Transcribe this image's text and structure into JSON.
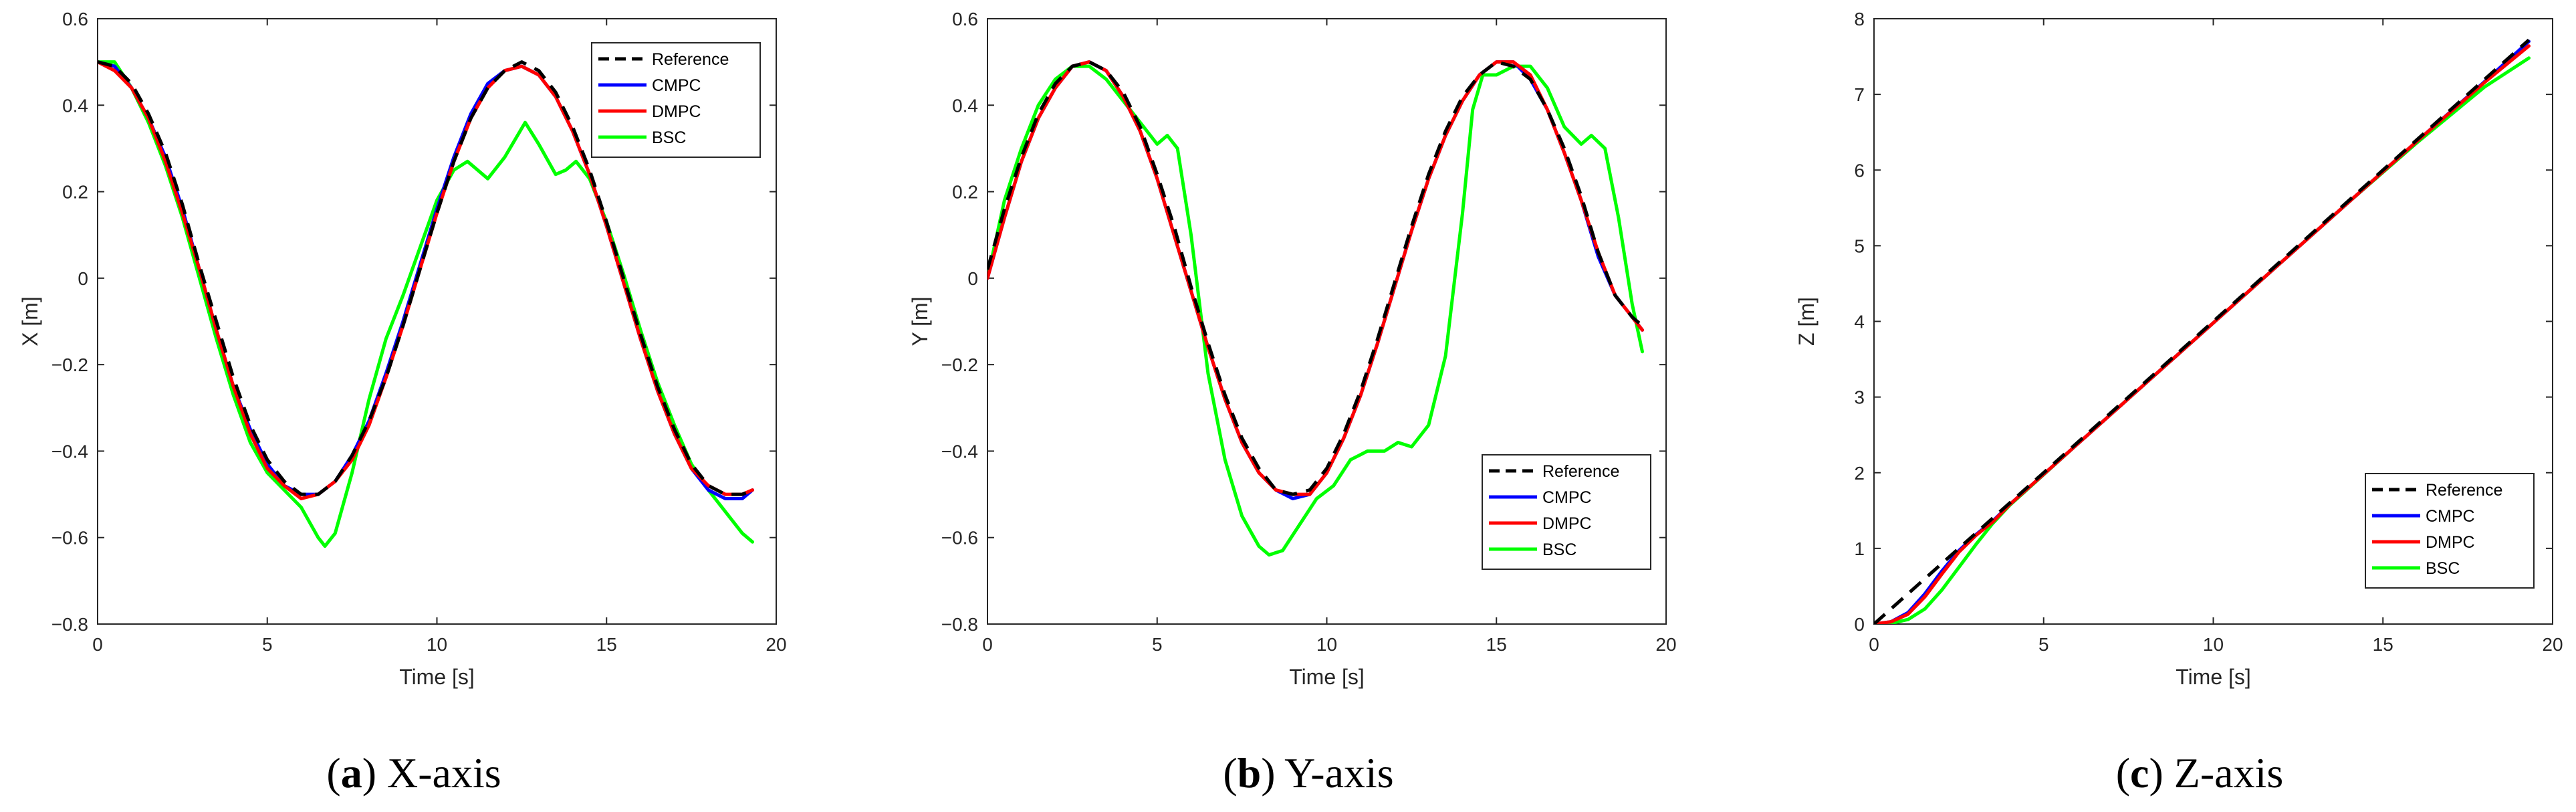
{
  "colors": {
    "Reference": "#000000",
    "CMPC": "#0000ff",
    "DMPC": "#ff0000",
    "BSC": "#00ff00"
  },
  "chart_data": [
    {
      "type": "line",
      "caption_label": "a",
      "caption_text": " X-axis",
      "xlabel": "Time [s]",
      "ylabel": "X [m]",
      "xlim": [
        0,
        20
      ],
      "ylim": [
        -0.8,
        0.6
      ],
      "xticks": [
        0,
        5,
        10,
        15,
        20
      ],
      "yticks": [
        -0.8,
        -0.6,
        -0.4,
        -0.2,
        0,
        0.2,
        0.4,
        0.6
      ],
      "legend_position": "top-right",
      "series": [
        {
          "name": "Reference",
          "style": "dashed",
          "x": [
            0,
            0.5,
            1,
            1.5,
            2,
            2.5,
            3,
            3.5,
            4,
            4.5,
            5,
            5.5,
            6,
            6.5,
            7,
            7.5,
            8,
            8.5,
            9,
            9.5,
            10,
            10.5,
            11,
            11.5,
            12,
            12.5,
            13,
            13.5,
            14,
            14.5,
            15,
            15.5,
            16,
            16.5,
            17,
            17.5,
            18,
            18.5,
            19,
            19.3
          ],
          "y": [
            0.5,
            0.49,
            0.45,
            0.38,
            0.29,
            0.17,
            0.03,
            -0.1,
            -0.23,
            -0.34,
            -0.42,
            -0.47,
            -0.5,
            -0.5,
            -0.47,
            -0.41,
            -0.33,
            -0.23,
            -0.11,
            0.02,
            0.15,
            0.27,
            0.37,
            0.44,
            0.48,
            0.5,
            0.48,
            0.43,
            0.35,
            0.25,
            0.13,
            0.0,
            -0.13,
            -0.25,
            -0.35,
            -0.43,
            -0.48,
            -0.5,
            -0.5,
            -0.49
          ]
        },
        {
          "name": "CMPC",
          "style": "solid",
          "x": [
            0,
            0.5,
            1,
            1.5,
            2,
            2.5,
            3,
            3.5,
            4,
            4.5,
            5,
            5.5,
            6,
            6.5,
            7,
            7.5,
            8,
            8.5,
            9,
            9.5,
            10,
            10.5,
            11,
            11.5,
            12,
            12.5,
            13,
            13.5,
            14,
            14.5,
            15,
            15.5,
            16,
            16.5,
            17,
            17.5,
            18,
            18.5,
            19,
            19.3
          ],
          "y": [
            0.5,
            0.49,
            0.44,
            0.37,
            0.28,
            0.16,
            0.02,
            -0.12,
            -0.25,
            -0.35,
            -0.43,
            -0.48,
            -0.5,
            -0.5,
            -0.47,
            -0.41,
            -0.33,
            -0.22,
            -0.1,
            0.03,
            0.16,
            0.28,
            0.38,
            0.45,
            0.48,
            0.49,
            0.47,
            0.42,
            0.34,
            0.24,
            0.12,
            -0.01,
            -0.14,
            -0.26,
            -0.36,
            -0.44,
            -0.49,
            -0.51,
            -0.51,
            -0.49
          ]
        },
        {
          "name": "DMPC",
          "style": "solid",
          "x": [
            0,
            0.5,
            1,
            1.5,
            2,
            2.5,
            3,
            3.5,
            4,
            4.5,
            5,
            5.5,
            6,
            6.5,
            7,
            7.5,
            8,
            8.5,
            9,
            9.5,
            10,
            10.5,
            11,
            11.5,
            12,
            12.5,
            13,
            13.5,
            14,
            14.5,
            15,
            15.5,
            16,
            16.5,
            17,
            17.5,
            18,
            18.5,
            19,
            19.3
          ],
          "y": [
            0.5,
            0.48,
            0.44,
            0.37,
            0.27,
            0.15,
            0.02,
            -0.12,
            -0.25,
            -0.36,
            -0.44,
            -0.48,
            -0.51,
            -0.5,
            -0.47,
            -0.42,
            -0.34,
            -0.23,
            -0.11,
            0.02,
            0.15,
            0.27,
            0.37,
            0.44,
            0.48,
            0.49,
            0.47,
            0.42,
            0.34,
            0.24,
            0.12,
            -0.01,
            -0.14,
            -0.26,
            -0.36,
            -0.44,
            -0.48,
            -0.5,
            -0.5,
            -0.49
          ]
        },
        {
          "name": "BSC",
          "style": "solid",
          "x": [
            0,
            0.5,
            1,
            1.5,
            2,
            2.5,
            3,
            3.5,
            4,
            4.5,
            5,
            5.5,
            6,
            6.5,
            6.7,
            7,
            7.5,
            8,
            8.5,
            9,
            9.5,
            10,
            10.5,
            10.9,
            11.2,
            11.5,
            12,
            12.6,
            13,
            13.5,
            13.8,
            14.1,
            14.5,
            15,
            15.5,
            16,
            16.5,
            17,
            17.5,
            18,
            18.5,
            19,
            19.3
          ],
          "y": [
            0.5,
            0.5,
            0.44,
            0.36,
            0.26,
            0.14,
            0.0,
            -0.14,
            -0.27,
            -0.38,
            -0.45,
            -0.49,
            -0.53,
            -0.6,
            -0.62,
            -0.59,
            -0.45,
            -0.28,
            -0.14,
            -0.04,
            0.07,
            0.18,
            0.25,
            0.27,
            0.25,
            0.23,
            0.28,
            0.36,
            0.31,
            0.24,
            0.25,
            0.27,
            0.23,
            0.13,
            0.01,
            -0.12,
            -0.24,
            -0.34,
            -0.43,
            -0.49,
            -0.54,
            -0.59,
            -0.61
          ]
        }
      ]
    },
    {
      "type": "line",
      "caption_label": "b",
      "caption_text": " Y-axis",
      "xlabel": "Time [s]",
      "ylabel": "Y [m]",
      "xlim": [
        0,
        20
      ],
      "ylim": [
        -0.8,
        0.6
      ],
      "xticks": [
        0,
        5,
        10,
        15,
        20
      ],
      "yticks": [
        -0.8,
        -0.6,
        -0.4,
        -0.2,
        0,
        0.2,
        0.4,
        0.6
      ],
      "legend_position": "bottom-right",
      "series": [
        {
          "name": "Reference",
          "style": "dashed",
          "x": [
            0,
            0.5,
            1,
            1.5,
            2,
            2.5,
            3,
            3.5,
            4,
            4.5,
            5,
            5.5,
            6,
            6.5,
            7,
            7.5,
            8,
            8.5,
            9,
            9.5,
            10,
            10.5,
            11,
            11.5,
            12,
            12.5,
            13,
            13.5,
            14,
            14.5,
            15,
            15.5,
            16,
            16.5,
            17,
            17.5,
            18,
            18.5,
            19,
            19.3
          ],
          "y": [
            0.02,
            0.16,
            0.28,
            0.38,
            0.45,
            0.49,
            0.5,
            0.48,
            0.43,
            0.35,
            0.24,
            0.12,
            -0.02,
            -0.15,
            -0.27,
            -0.37,
            -0.44,
            -0.49,
            -0.5,
            -0.49,
            -0.44,
            -0.36,
            -0.26,
            -0.14,
            -0.01,
            0.12,
            0.24,
            0.34,
            0.42,
            0.47,
            0.5,
            0.49,
            0.46,
            0.39,
            0.3,
            0.19,
            0.06,
            -0.04,
            -0.09,
            -0.11
          ]
        },
        {
          "name": "CMPC",
          "style": "solid",
          "x": [
            0,
            0.5,
            1,
            1.5,
            2,
            2.5,
            3,
            3.5,
            4,
            4.5,
            5,
            5.5,
            6,
            6.5,
            7,
            7.5,
            8,
            8.5,
            9,
            9.5,
            10,
            10.5,
            11,
            11.5,
            12,
            12.5,
            13,
            13.5,
            14,
            14.5,
            15,
            15.5,
            16,
            16.5,
            17,
            17.5,
            18,
            18.5,
            19,
            19.3
          ],
          "y": [
            0.0,
            0.14,
            0.27,
            0.37,
            0.44,
            0.49,
            0.5,
            0.48,
            0.42,
            0.34,
            0.23,
            0.1,
            -0.03,
            -0.16,
            -0.28,
            -0.38,
            -0.45,
            -0.49,
            -0.51,
            -0.5,
            -0.45,
            -0.37,
            -0.27,
            -0.15,
            -0.02,
            0.11,
            0.23,
            0.33,
            0.41,
            0.47,
            0.5,
            0.5,
            0.46,
            0.39,
            0.29,
            0.18,
            0.05,
            -0.04,
            -0.09,
            -0.12
          ]
        },
        {
          "name": "DMPC",
          "style": "solid",
          "x": [
            0,
            0.5,
            1,
            1.5,
            2,
            2.5,
            3,
            3.5,
            4,
            4.5,
            5,
            5.5,
            6,
            6.5,
            7,
            7.5,
            8,
            8.5,
            9,
            9.5,
            10,
            10.5,
            11,
            11.5,
            12,
            12.5,
            13,
            13.5,
            14,
            14.5,
            15,
            15.5,
            16,
            16.5,
            17,
            17.5,
            18,
            18.5,
            19,
            19.3
          ],
          "y": [
            0.0,
            0.14,
            0.27,
            0.37,
            0.44,
            0.49,
            0.5,
            0.48,
            0.42,
            0.34,
            0.23,
            0.1,
            -0.03,
            -0.16,
            -0.28,
            -0.38,
            -0.45,
            -0.49,
            -0.5,
            -0.5,
            -0.45,
            -0.37,
            -0.27,
            -0.15,
            -0.02,
            0.11,
            0.23,
            0.33,
            0.41,
            0.47,
            0.5,
            0.5,
            0.47,
            0.39,
            0.29,
            0.18,
            0.06,
            -0.04,
            -0.09,
            -0.12
          ]
        },
        {
          "name": "BSC",
          "style": "solid",
          "x": [
            0,
            0.5,
            1,
            1.5,
            2,
            2.5,
            3,
            3.5,
            4,
            4.5,
            5,
            5.3,
            5.6,
            6,
            6.5,
            7,
            7.5,
            8,
            8.3,
            8.7,
            9.2,
            9.7,
            10.2,
            10.7,
            11.2,
            11.7,
            12.1,
            12.5,
            13,
            13.5,
            14,
            14.3,
            14.6,
            15,
            15.5,
            16,
            16.5,
            17,
            17.5,
            17.8,
            18.2,
            18.6,
            19,
            19.3
          ],
          "y": [
            0.0,
            0.18,
            0.3,
            0.4,
            0.46,
            0.49,
            0.49,
            0.46,
            0.41,
            0.36,
            0.31,
            0.33,
            0.3,
            0.1,
            -0.22,
            -0.42,
            -0.55,
            -0.62,
            -0.64,
            -0.63,
            -0.57,
            -0.51,
            -0.48,
            -0.42,
            -0.4,
            -0.4,
            -0.38,
            -0.39,
            -0.34,
            -0.18,
            0.15,
            0.39,
            0.47,
            0.47,
            0.49,
            0.49,
            0.44,
            0.35,
            0.31,
            0.33,
            0.3,
            0.14,
            -0.06,
            -0.17
          ]
        }
      ]
    },
    {
      "type": "line",
      "caption_label": "c",
      "caption_text": " Z-axis",
      "xlabel": "Time [s]",
      "ylabel": "Z [m]",
      "xlim": [
        0,
        20
      ],
      "ylim": [
        0,
        8
      ],
      "xticks": [
        0,
        5,
        10,
        15,
        20
      ],
      "yticks": [
        0,
        1,
        2,
        3,
        4,
        5,
        6,
        7,
        8
      ],
      "legend_position": "bottom-right",
      "series": [
        {
          "name": "Reference",
          "style": "dashed",
          "x": [
            0,
            2,
            4,
            6,
            8,
            10,
            12,
            14,
            16,
            18,
            19.3
          ],
          "y": [
            0.0,
            0.8,
            1.6,
            2.4,
            3.2,
            4.0,
            4.8,
            5.6,
            6.4,
            7.2,
            7.72
          ]
        },
        {
          "name": "CMPC",
          "style": "solid",
          "x": [
            0,
            0.5,
            1,
            1.5,
            2,
            2.5,
            3,
            3.5,
            4,
            6,
            8,
            10,
            12,
            14,
            16,
            18,
            19.3
          ],
          "y": [
            0.0,
            0.03,
            0.15,
            0.4,
            0.7,
            0.97,
            1.18,
            1.36,
            1.58,
            2.38,
            3.18,
            3.98,
            4.78,
            5.58,
            6.38,
            7.17,
            7.7
          ]
        },
        {
          "name": "DMPC",
          "style": "solid",
          "x": [
            0,
            0.5,
            1,
            1.5,
            2,
            2.5,
            3,
            3.5,
            4,
            6,
            8,
            10,
            12,
            14,
            16,
            18,
            19.3
          ],
          "y": [
            0.0,
            0.03,
            0.13,
            0.36,
            0.66,
            0.95,
            1.17,
            1.35,
            1.58,
            2.38,
            3.18,
            3.98,
            4.78,
            5.58,
            6.38,
            7.16,
            7.64
          ]
        },
        {
          "name": "BSC",
          "style": "solid",
          "x": [
            0,
            0.5,
            1,
            1.5,
            2,
            2.5,
            3,
            3.5,
            4,
            6,
            8,
            10,
            12,
            14,
            16,
            18,
            19.3
          ],
          "y": [
            0.0,
            0.01,
            0.06,
            0.2,
            0.45,
            0.75,
            1.05,
            1.33,
            1.57,
            2.38,
            3.18,
            3.98,
            4.78,
            5.58,
            6.36,
            7.1,
            7.48
          ]
        }
      ]
    }
  ]
}
